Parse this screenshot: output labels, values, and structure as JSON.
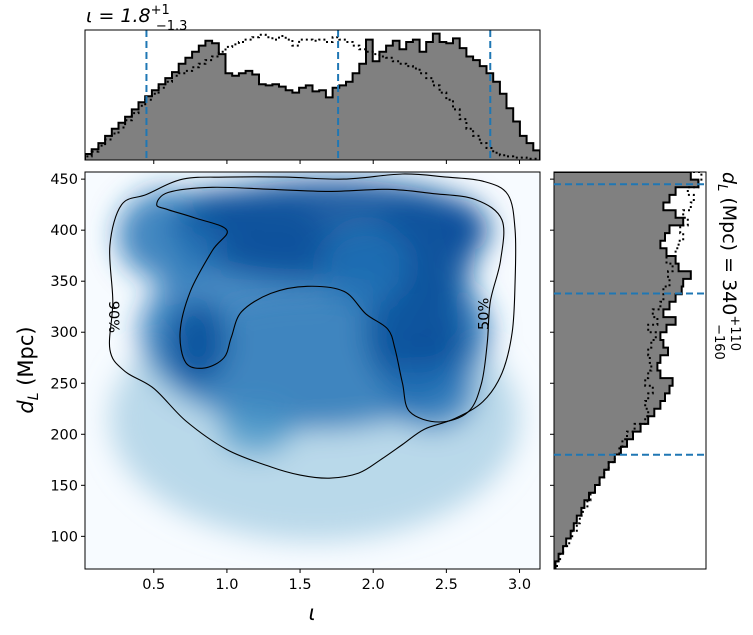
{
  "chart_data": {
    "type": "heatmap",
    "colormap": "Blues",
    "colors": {
      "hist_fill": "#808080",
      "quantile_line": "#1f77b4",
      "contour": "#000000"
    },
    "main": {
      "xlabel": "ι",
      "ylabel_base": "d",
      "ylabel_sub": "L",
      "ylabel_unit": " (Mpc)",
      "xlim": [
        0.03,
        3.14
      ],
      "ylim": [
        68,
        457
      ],
      "xticks": [
        0.5,
        1.0,
        1.5,
        2.0,
        2.5,
        3.0
      ],
      "xtick_labels": [
        "0.5",
        "1.0",
        "1.5",
        "2.0",
        "2.5",
        "3.0"
      ],
      "yticks": [
        100,
        150,
        200,
        250,
        300,
        350,
        400,
        450
      ],
      "ytick_labels": [
        "100",
        "150",
        "200",
        "250",
        "300",
        "350",
        "400",
        "450"
      ],
      "contours": [
        {
          "label": "90%",
          "label_at": [
            0.22,
            315
          ],
          "points": [
            [
              0.45,
              435
            ],
            [
              0.7,
              450
            ],
            [
              1.0,
              452
            ],
            [
              1.4,
              452
            ],
            [
              1.8,
              450
            ],
            [
              2.2,
              455
            ],
            [
              2.5,
              452
            ],
            [
              2.75,
              448
            ],
            [
              2.92,
              435
            ],
            [
              2.97,
              400
            ],
            [
              2.97,
              350
            ],
            [
              2.95,
              300
            ],
            [
              2.88,
              260
            ],
            [
              2.75,
              232
            ],
            [
              2.55,
              215
            ],
            [
              2.35,
              205
            ],
            [
              2.2,
              190
            ],
            [
              2.05,
              175
            ],
            [
              1.9,
              162
            ],
            [
              1.7,
              157
            ],
            [
              1.5,
              160
            ],
            [
              1.3,
              168
            ],
            [
              1.0,
              185
            ],
            [
              0.72,
              213
            ],
            [
              0.5,
              245
            ],
            [
              0.3,
              262
            ],
            [
              0.2,
              283
            ],
            [
              0.22,
              330
            ],
            [
              0.2,
              385
            ],
            [
              0.28,
              425
            ]
          ]
        },
        {
          "label": "50%",
          "label_at": [
            2.76,
            318
          ],
          "points": [
            [
              0.52,
              425
            ],
            [
              0.6,
              437
            ],
            [
              0.9,
              442
            ],
            [
              1.3,
              440
            ],
            [
              1.7,
              438
            ],
            [
              2.1,
              440
            ],
            [
              2.4,
              436
            ],
            [
              2.7,
              430
            ],
            [
              2.88,
              410
            ],
            [
              2.87,
              370
            ],
            [
              2.8,
              330
            ],
            [
              2.78,
              290
            ],
            [
              2.74,
              250
            ],
            [
              2.65,
              222
            ],
            [
              2.45,
              212
            ],
            [
              2.25,
              222
            ],
            [
              2.2,
              250
            ],
            [
              2.15,
              283
            ],
            [
              2.1,
              303
            ],
            [
              1.95,
              318
            ],
            [
              1.8,
              340
            ],
            [
              1.55,
              345
            ],
            [
              1.3,
              338
            ],
            [
              1.1,
              320
            ],
            [
              1.03,
              295
            ],
            [
              0.98,
              275
            ],
            [
              0.85,
              265
            ],
            [
              0.72,
              270
            ],
            [
              0.68,
              300
            ],
            [
              0.75,
              340
            ],
            [
              0.9,
              380
            ],
            [
              1.0,
              400
            ],
            [
              0.78,
              412
            ],
            [
              0.6,
              420
            ]
          ]
        }
      ]
    },
    "top_hist": {
      "title_base": "ι = 1.8",
      "title_sup": "+1",
      "title_sub": "−1.3",
      "xlim": [
        0.03,
        3.14
      ],
      "ymax": 1.08,
      "quantiles": [
        0.45,
        1.76,
        2.8
      ],
      "filled_values": [
        0.05,
        0.09,
        0.14,
        0.2,
        0.26,
        0.31,
        0.36,
        0.42,
        0.48,
        0.53,
        0.58,
        0.63,
        0.68,
        0.73,
        0.8,
        0.85,
        0.9,
        0.95,
        0.99,
        0.97,
        0.88,
        0.72,
        0.7,
        0.72,
        0.74,
        0.71,
        0.63,
        0.62,
        0.63,
        0.61,
        0.58,
        0.56,
        0.6,
        0.62,
        0.57,
        0.58,
        0.52,
        0.6,
        0.62,
        0.65,
        0.72,
        0.8,
        1.0,
        0.82,
        0.9,
        0.95,
        0.99,
        0.92,
        0.98,
        1.0,
        0.9,
        0.98,
        1.05,
        0.98,
        0.97,
        1.01,
        0.93,
        0.86,
        0.83,
        0.78,
        0.72,
        0.65,
        0.55,
        0.43,
        0.32,
        0.2,
        0.14,
        0.08
      ],
      "dotted_values": [
        0.03,
        0.07,
        0.12,
        0.17,
        0.22,
        0.27,
        0.33,
        0.39,
        0.45,
        0.5,
        0.55,
        0.6,
        0.65,
        0.7,
        0.72,
        0.74,
        0.77,
        0.8,
        0.83,
        0.86,
        0.9,
        0.94,
        0.96,
        0.98,
        1.0,
        1.02,
        1.04,
        1.02,
        1.0,
        1.03,
        1.0,
        0.95,
        1.0,
        1.0,
        0.99,
        1.0,
        0.98,
        1.02,
        1.0,
        0.98,
        0.95,
        0.92,
        0.9,
        0.88,
        0.86,
        0.85,
        0.82,
        0.8,
        0.78,
        0.76,
        0.72,
        0.68,
        0.62,
        0.56,
        0.5,
        0.42,
        0.34,
        0.26,
        0.2,
        0.14,
        0.1,
        0.06,
        0.04,
        0.03,
        0.02,
        0.02,
        0.01,
        0.01
      ]
    },
    "right_hist": {
      "title_base": "d",
      "title_sub": "L",
      "title_rest": " (Mpc) = 340",
      "title_sup": "+110",
      "title_lsub": "−160",
      "ylim": [
        68,
        457
      ],
      "xmax": 1.0,
      "quantiles": [
        180,
        338,
        445
      ],
      "filled_values": [
        0.01,
        0.03,
        0.06,
        0.08,
        0.11,
        0.13,
        0.15,
        0.18,
        0.2,
        0.23,
        0.27,
        0.3,
        0.33,
        0.36,
        0.4,
        0.44,
        0.48,
        0.52,
        0.57,
        0.62,
        0.66,
        0.7,
        0.73,
        0.76,
        0.78,
        0.7,
        0.68,
        0.7,
        0.75,
        0.72,
        0.7,
        0.74,
        0.8,
        0.72,
        0.76,
        0.8,
        0.84,
        0.85,
        0.9,
        0.82,
        0.8,
        0.74,
        0.7,
        0.73,
        0.76,
        0.85,
        0.8,
        0.72,
        0.76,
        0.8,
        0.95,
        0.9
      ],
      "dotted_values": [
        0.02,
        0.04,
        0.06,
        0.1,
        0.12,
        0.15,
        0.17,
        0.19,
        0.22,
        0.24,
        0.27,
        0.3,
        0.33,
        0.36,
        0.4,
        0.43,
        0.45,
        0.48,
        0.53,
        0.6,
        0.62,
        0.6,
        0.62,
        0.65,
        0.6,
        0.62,
        0.64,
        0.63,
        0.62,
        0.64,
        0.67,
        0.62,
        0.68,
        0.65,
        0.7,
        0.72,
        0.72,
        0.76,
        0.75,
        0.78,
        0.74,
        0.8,
        0.82,
        0.85,
        0.83,
        0.88,
        0.85,
        0.9,
        0.92,
        0.88,
        0.95,
        0.97
      ]
    }
  }
}
